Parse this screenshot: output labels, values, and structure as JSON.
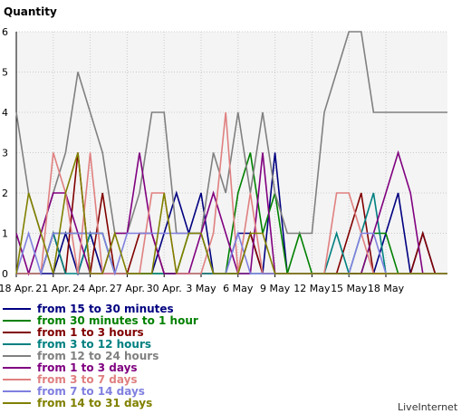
{
  "chart_data": {
    "type": "line",
    "title": "Quantity",
    "ylim": [
      0,
      6
    ],
    "yticks": [
      "0",
      "1",
      "2",
      "3",
      "4",
      "5",
      "6"
    ],
    "x_tick_labels": [
      "18 Apr.",
      "21 Apr.",
      "24 Apr.",
      "27 Apr.",
      "30 Apr.",
      "3 May",
      "6 May",
      "9 May",
      "12 May",
      "15 May",
      "18 May"
    ],
    "x_tick_step": 3,
    "grid": true,
    "legend_position": "bottom-left",
    "series": [
      {
        "name": "from 15 to 30 minutes",
        "color": "#000080",
        "values": [
          0,
          0,
          0,
          0,
          1,
          0,
          1,
          0,
          0,
          0,
          0,
          0,
          1,
          2,
          1,
          2,
          0,
          0,
          1,
          1,
          0,
          3,
          0,
          0,
          0,
          0,
          0,
          0,
          0,
          0,
          1,
          2,
          0,
          1,
          0,
          0
        ]
      },
      {
        "name": "from 30 minutes to 1 hour",
        "color": "#008000",
        "values": [
          0,
          0,
          0,
          1,
          1,
          1,
          1,
          1,
          0,
          0,
          0,
          0,
          0,
          0,
          1,
          1,
          0,
          0,
          2,
          3,
          1,
          2,
          0,
          1,
          0,
          0,
          0,
          0,
          0,
          1,
          1,
          0,
          0,
          0,
          0,
          0
        ]
      },
      {
        "name": "from 1 to 3 hours",
        "color": "#800000",
        "values": [
          0,
          0,
          0,
          1,
          0,
          3,
          0,
          2,
          0,
          0,
          1,
          1,
          0,
          0,
          0,
          0,
          0,
          0,
          0,
          1,
          0,
          0,
          0,
          0,
          0,
          0,
          0,
          1,
          2,
          0,
          0,
          0,
          0,
          1,
          0,
          0
        ]
      },
      {
        "name": "from 3 to 12 hours",
        "color": "#008080",
        "values": [
          0,
          0,
          0,
          1,
          0,
          0,
          1,
          1,
          0,
          0,
          0,
          0,
          0,
          0,
          0,
          0,
          0,
          0,
          0,
          0,
          0,
          0,
          0,
          0,
          0,
          0,
          1,
          0,
          1,
          2,
          0,
          0,
          0,
          0,
          0,
          0
        ]
      },
      {
        "name": "from 12 to 24 hours",
        "color": "#808080",
        "values": [
          4,
          2,
          1,
          2,
          3,
          5,
          4,
          3,
          1,
          1,
          2,
          4,
          4,
          1,
          1,
          1,
          3,
          2,
          4,
          2,
          4,
          2,
          1,
          1,
          1,
          4,
          5,
          6,
          6,
          4,
          4,
          4,
          4,
          4,
          4,
          4
        ]
      },
      {
        "name": "from 1 to 3 days",
        "color": "#800080",
        "values": [
          1,
          0,
          1,
          2,
          2,
          1,
          0,
          0,
          1,
          1,
          3,
          1,
          0,
          0,
          0,
          1,
          2,
          1,
          0,
          0,
          3,
          0,
          0,
          0,
          0,
          0,
          0,
          0,
          0,
          1,
          2,
          3,
          2,
          0,
          0,
          0
        ]
      },
      {
        "name": "from 3 to 7 days",
        "color": "#e08080",
        "values": [
          0,
          0,
          0,
          3,
          2,
          0,
          3,
          0,
          0,
          0,
          0,
          2,
          2,
          0,
          0,
          0,
          1,
          4,
          0,
          2,
          0,
          0,
          0,
          0,
          0,
          0,
          2,
          2,
          1,
          0,
          0,
          0,
          0,
          0,
          0,
          0
        ]
      },
      {
        "name": "from 7 to 14 days",
        "color": "#8080e0",
        "values": [
          0,
          1,
          0,
          1,
          1,
          1,
          1,
          1,
          0,
          1,
          1,
          1,
          1,
          1,
          1,
          1,
          0,
          0,
          1,
          0,
          0,
          0,
          0,
          0,
          0,
          0,
          0,
          0,
          1,
          1,
          0,
          0,
          0,
          0,
          0,
          0
        ]
      },
      {
        "name": "from 14 to 31 days",
        "color": "#808000",
        "values": [
          0,
          2,
          1,
          0,
          2,
          3,
          0,
          0,
          1,
          0,
          0,
          0,
          2,
          0,
          1,
          1,
          0,
          0,
          0,
          1,
          1,
          0,
          0,
          0,
          0,
          0,
          0,
          0,
          0,
          0,
          0,
          0,
          0,
          0,
          0,
          0
        ]
      }
    ]
  },
  "branding": "LiveInternet"
}
